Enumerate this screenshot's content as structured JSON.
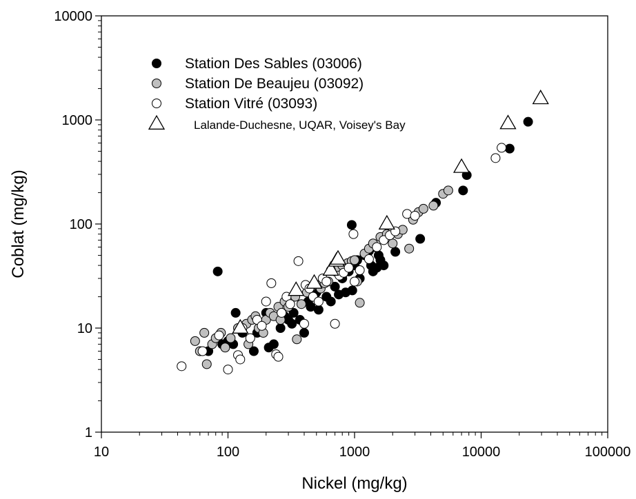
{
  "chart_data": {
    "type": "scatter",
    "title": "",
    "xlabel": "Nickel (mg/kg)",
    "ylabel": "Coblat (mg/kg)",
    "x_scale": "log",
    "y_scale": "log",
    "xlim": [
      10,
      100000
    ],
    "ylim": [
      1,
      10000
    ],
    "x_ticks": [
      "10",
      "100",
      "1000",
      "10000",
      "100000"
    ],
    "y_ticks": [
      "1",
      "10",
      "100",
      "1000",
      "10000"
    ],
    "grid": false,
    "legend_position": "top-left",
    "series": [
      {
        "name": "Station Des Sables (03006)",
        "marker": "circle",
        "fill": "#000000",
        "stroke": "#000000",
        "points": [
          [
            83,
            35
          ],
          [
            70,
            6
          ],
          [
            90,
            7
          ],
          [
            100,
            7.5
          ],
          [
            110,
            7
          ],
          [
            115,
            14
          ],
          [
            130,
            9
          ],
          [
            160,
            6
          ],
          [
            170,
            9
          ],
          [
            180,
            11
          ],
          [
            200,
            14
          ],
          [
            210,
            6.5
          ],
          [
            230,
            7
          ],
          [
            260,
            10
          ],
          [
            280,
            13
          ],
          [
            300,
            12
          ],
          [
            320,
            11
          ],
          [
            330,
            14
          ],
          [
            370,
            12
          ],
          [
            400,
            9
          ],
          [
            430,
            18
          ],
          [
            450,
            16
          ],
          [
            480,
            20
          ],
          [
            500,
            22
          ],
          [
            520,
            15
          ],
          [
            540,
            25
          ],
          [
            600,
            20
          ],
          [
            650,
            18
          ],
          [
            700,
            25
          ],
          [
            750,
            21
          ],
          [
            800,
            30
          ],
          [
            850,
            22
          ],
          [
            900,
            35
          ],
          [
            950,
            98
          ],
          [
            960,
            23
          ],
          [
            1000,
            40
          ],
          [
            1050,
            45
          ],
          [
            1100,
            30
          ],
          [
            1200,
            50
          ],
          [
            1300,
            55
          ],
          [
            1350,
            40
          ],
          [
            1400,
            35
          ],
          [
            1450,
            60
          ],
          [
            1500,
            38
          ],
          [
            1550,
            50
          ],
          [
            1600,
            45
          ],
          [
            1700,
            40
          ],
          [
            2100,
            54
          ],
          [
            3300,
            72
          ],
          [
            4400,
            160
          ],
          [
            7200,
            210
          ],
          [
            7700,
            295
          ],
          [
            16800,
            530
          ],
          [
            23500,
            960
          ]
        ]
      },
      {
        "name": "Station De Beaujeu (03092)",
        "marker": "circle",
        "fill": "#bfbfbf",
        "stroke": "#000000",
        "points": [
          [
            55,
            7.5
          ],
          [
            60,
            6
          ],
          [
            65,
            9
          ],
          [
            68,
            4.5
          ],
          [
            75,
            7
          ],
          [
            80,
            8
          ],
          [
            88,
            9
          ],
          [
            95,
            6.5
          ],
          [
            105,
            8
          ],
          [
            120,
            10
          ],
          [
            140,
            11
          ],
          [
            145,
            7
          ],
          [
            155,
            12
          ],
          [
            165,
            13
          ],
          [
            175,
            10
          ],
          [
            190,
            9
          ],
          [
            200,
            12
          ],
          [
            215,
            14
          ],
          [
            230,
            13
          ],
          [
            250,
            16
          ],
          [
            260,
            12
          ],
          [
            280,
            18
          ],
          [
            300,
            16
          ],
          [
            340,
            20
          ],
          [
            350,
            7.8
          ],
          [
            380,
            17
          ],
          [
            420,
            22
          ],
          [
            460,
            25
          ],
          [
            500,
            26
          ],
          [
            540,
            24
          ],
          [
            580,
            27
          ],
          [
            620,
            28
          ],
          [
            700,
            35
          ],
          [
            750,
            38
          ],
          [
            800,
            40
          ],
          [
            880,
            42
          ],
          [
            950,
            44
          ],
          [
            1000,
            45
          ],
          [
            1050,
            28
          ],
          [
            1100,
            17.5
          ],
          [
            1200,
            52
          ],
          [
            1300,
            58
          ],
          [
            1400,
            65
          ],
          [
            1600,
            75
          ],
          [
            1800,
            80
          ],
          [
            2000,
            65
          ],
          [
            2200,
            80
          ],
          [
            2400,
            88
          ],
          [
            2700,
            58
          ],
          [
            2900,
            110
          ],
          [
            3200,
            130
          ],
          [
            3500,
            140
          ],
          [
            4200,
            150
          ],
          [
            5000,
            195
          ],
          [
            5500,
            210
          ]
        ]
      },
      {
        "name": "Station Vitré (03093)",
        "marker": "circle",
        "fill": "#ffffff",
        "stroke": "#000000",
        "points": [
          [
            43,
            4.3
          ],
          [
            63,
            6
          ],
          [
            85,
            8.5
          ],
          [
            100,
            4
          ],
          [
            120,
            5.5
          ],
          [
            125,
            5
          ],
          [
            130,
            10
          ],
          [
            150,
            8
          ],
          [
            170,
            12
          ],
          [
            185,
            10.5
          ],
          [
            200,
            18
          ],
          [
            220,
            27
          ],
          [
            240,
            5.6
          ],
          [
            250,
            5.3
          ],
          [
            265,
            14
          ],
          [
            290,
            20
          ],
          [
            310,
            17
          ],
          [
            360,
            44
          ],
          [
            400,
            11
          ],
          [
            410,
            26
          ],
          [
            440,
            24
          ],
          [
            470,
            20
          ],
          [
            520,
            18
          ],
          [
            560,
            30
          ],
          [
            600,
            28
          ],
          [
            650,
            36
          ],
          [
            700,
            11
          ],
          [
            760,
            32
          ],
          [
            820,
            34
          ],
          [
            900,
            38
          ],
          [
            980,
            80
          ],
          [
            1000,
            28
          ],
          [
            1100,
            36
          ],
          [
            1300,
            46
          ],
          [
            1500,
            60
          ],
          [
            1700,
            70
          ],
          [
            1900,
            78
          ],
          [
            2100,
            85
          ],
          [
            2600,
            125
          ],
          [
            3000,
            120
          ],
          [
            13000,
            430
          ],
          [
            14500,
            540
          ]
        ]
      },
      {
        "name": "Lalande-Duchesne, UQAR, Voisey's Bay",
        "marker": "triangle",
        "fill": "#ffffff",
        "stroke": "#000000",
        "points": [
          [
            125,
            10
          ],
          [
            345,
            23
          ],
          [
            480,
            27
          ],
          [
            650,
            36
          ],
          [
            720,
            44
          ],
          [
            740,
            46
          ],
          [
            1800,
            100
          ],
          [
            7000,
            350
          ],
          [
            16300,
            920
          ],
          [
            29500,
            1600
          ]
        ]
      }
    ]
  }
}
